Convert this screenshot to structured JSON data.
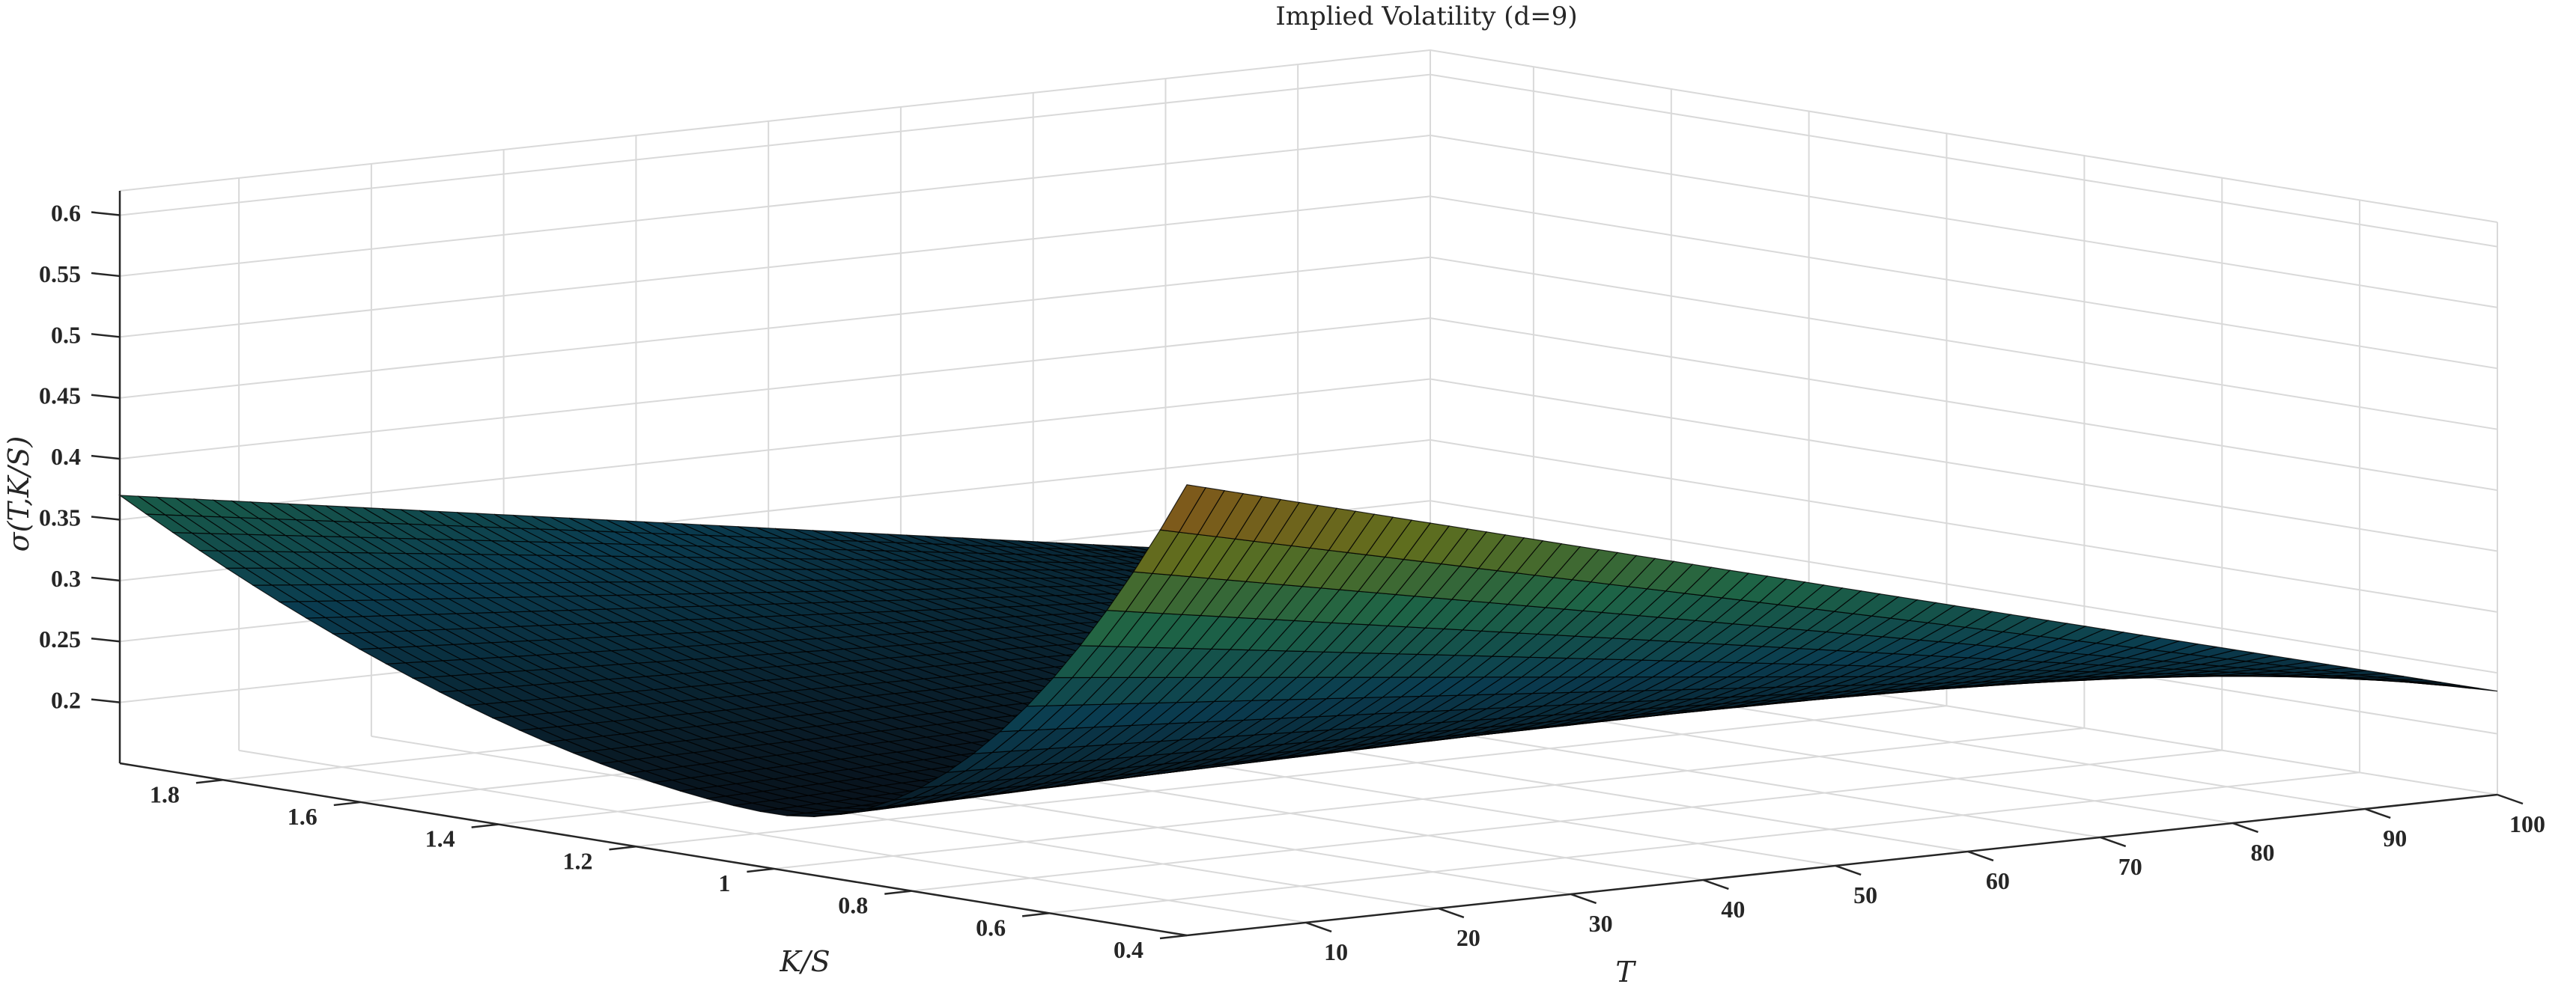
{
  "chart_data": {
    "type": "surface",
    "title": "Implied Volatility (d=9)",
    "xlabel": "T",
    "ylabel": "K/S",
    "zlabel": "σ(T,K/S)",
    "x_ticks": [
      "10",
      "20",
      "30",
      "40",
      "50",
      "60",
      "70",
      "80",
      "90",
      "100"
    ],
    "y_ticks": [
      "1.8",
      "1.6",
      "1.4",
      "1.2",
      "1",
      "0.8",
      "0.6",
      "0.4"
    ],
    "z_ticks": [
      "0.2",
      "0.25",
      "0.3",
      "0.35",
      "0.4",
      "0.45",
      "0.5",
      "0.55",
      "0.6"
    ],
    "xlim": [
      1,
      100
    ],
    "ylim": [
      0.4,
      1.95
    ],
    "zlim": [
      0.15,
      0.62
    ],
    "grid": true,
    "colormap": "parula-dark",
    "edge_color": "#000000",
    "surface_points": [
      {
        "T": 1,
        "K_S": 1.95,
        "sigma": 0.37
      },
      {
        "T": 1,
        "K_S": 1.4,
        "sigma": 0.31
      },
      {
        "T": 1,
        "K_S": 1.0,
        "sigma": 0.195
      },
      {
        "T": 1,
        "K_S": 0.4,
        "sigma": 0.52
      },
      {
        "T": 100,
        "K_S": 1.95,
        "sigma": 0.2
      },
      {
        "T": 100,
        "K_S": 0.4,
        "sigma": 0.235
      }
    ]
  }
}
